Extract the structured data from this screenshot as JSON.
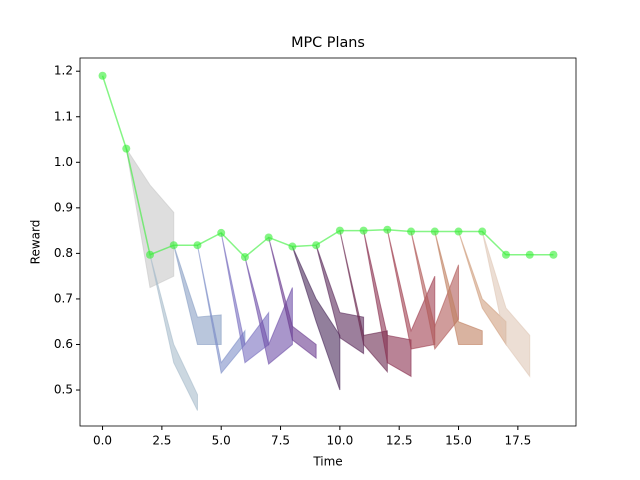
{
  "chart_data": {
    "type": "line",
    "title": "MPC Plans",
    "xlabel": "Time",
    "ylabel": "Reward",
    "x": [
      0,
      1,
      2,
      3,
      4,
      5,
      6,
      7,
      8,
      9,
      10,
      11,
      12,
      13,
      14,
      15,
      16,
      17,
      18,
      19
    ],
    "series": [
      {
        "color": "#33ee33",
        "values": [
          1.19,
          1.03,
          0.797,
          0.818,
          0.818,
          0.845,
          0.792,
          0.835,
          0.815,
          0.818,
          0.85,
          0.85,
          0.852,
          0.848,
          0.848,
          0.848,
          0.848,
          0.797,
          0.797,
          0.797
        ]
      }
    ],
    "plans": [
      {
        "color": "#c8c8c8",
        "x": [
          1,
          2,
          3
        ],
        "lower": [
          1.03,
          0.725,
          0.75
        ],
        "upper": [
          1.03,
          0.95,
          0.89
        ]
      },
      {
        "color": "#a8bccc",
        "x": [
          2,
          3,
          4
        ],
        "lower": [
          0.797,
          0.56,
          0.455
        ],
        "upper": [
          0.797,
          0.6,
          0.49
        ]
      },
      {
        "color": "#8aa0c4",
        "x": [
          3,
          4,
          5
        ],
        "lower": [
          0.818,
          0.6,
          0.6
        ],
        "upper": [
          0.818,
          0.66,
          0.665
        ]
      },
      {
        "color": "#7f90c8",
        "x": [
          4,
          5,
          6
        ],
        "lower": [
          0.818,
          0.537,
          0.6
        ],
        "upper": [
          0.818,
          0.56,
          0.63
        ]
      },
      {
        "color": "#7a70c0",
        "x": [
          5,
          6,
          7
        ],
        "lower": [
          0.845,
          0.56,
          0.6
        ],
        "upper": [
          0.845,
          0.6,
          0.67
        ]
      },
      {
        "color": "#7050a8",
        "x": [
          6,
          7,
          8
        ],
        "lower": [
          0.792,
          0.557,
          0.6
        ],
        "upper": [
          0.792,
          0.6,
          0.725
        ]
      },
      {
        "color": "#6a3c90",
        "x": [
          7,
          8,
          9
        ],
        "lower": [
          0.835,
          0.61,
          0.57
        ],
        "upper": [
          0.835,
          0.64,
          0.6
        ]
      },
      {
        "color": "#4a2a5a",
        "x": [
          8,
          9,
          10
        ],
        "lower": [
          0.815,
          0.65,
          0.5
        ],
        "upper": [
          0.815,
          0.7,
          0.62
        ]
      },
      {
        "color": "#5a2a5a",
        "x": [
          9,
          10,
          11
        ],
        "lower": [
          0.818,
          0.615,
          0.58
        ],
        "upper": [
          0.818,
          0.67,
          0.66
        ]
      },
      {
        "color": "#6a2a50",
        "x": [
          10,
          11,
          12
        ],
        "lower": [
          0.85,
          0.6,
          0.54
        ],
        "upper": [
          0.85,
          0.62,
          0.63
        ]
      },
      {
        "color": "#8a3050",
        "x": [
          11,
          12,
          13
        ],
        "lower": [
          0.85,
          0.56,
          0.53
        ],
        "upper": [
          0.85,
          0.62,
          0.61
        ]
      },
      {
        "color": "#a04050",
        "x": [
          12,
          13,
          14
        ],
        "lower": [
          0.852,
          0.59,
          0.6
        ],
        "upper": [
          0.852,
          0.63,
          0.75
        ]
      },
      {
        "color": "#b05a58",
        "x": [
          13,
          14,
          15
        ],
        "lower": [
          0.848,
          0.59,
          0.655
        ],
        "upper": [
          0.848,
          0.64,
          0.775
        ]
      },
      {
        "color": "#c08060",
        "x": [
          14,
          15,
          16
        ],
        "lower": [
          0.848,
          0.6,
          0.6
        ],
        "upper": [
          0.848,
          0.65,
          0.63
        ]
      },
      {
        "color": "#d0a080",
        "x": [
          15,
          16,
          17
        ],
        "lower": [
          0.848,
          0.68,
          0.6
        ],
        "upper": [
          0.848,
          0.7,
          0.65
        ]
      },
      {
        "color": "#e0c8b8",
        "x": [
          16,
          17,
          18
        ],
        "lower": [
          0.848,
          0.6,
          0.53
        ],
        "upper": [
          0.848,
          0.68,
          0.62
        ]
      }
    ],
    "xlim": [
      -0.95,
      19.95
    ],
    "ylim": [
      0.421,
      1.229
    ],
    "xticks": [
      {
        "value": 0,
        "label": "0.0"
      },
      2.5,
      {
        "value": 5,
        "label": "5.0"
      },
      7.5,
      {
        "value": 10,
        "label": "10.0"
      },
      12.5,
      {
        "value": 15,
        "label": "15.0"
      },
      17.5
    ],
    "yticks": [
      0.5,
      0.6,
      0.7,
      0.8,
      0.9,
      {
        "value": 1,
        "label": "1.0"
      },
      1.1,
      1.2
    ]
  }
}
